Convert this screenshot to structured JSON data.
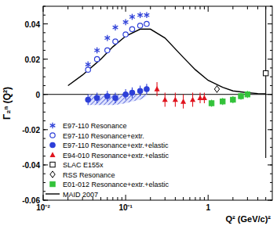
{
  "chart_data": {
    "type": "scatter",
    "x_label": "Q² (GeV/c)²",
    "y_label": "Γ₂ⁿ (Q²)",
    "log": "x",
    "legend": "lower left",
    "xlim": [
      0.01,
      6
    ],
    "ylim": [
      -0.06,
      0.05
    ],
    "xticks": [
      {
        "value": 0.01,
        "label": "10⁻²"
      },
      {
        "value": 0.1,
        "label": "10⁻¹"
      },
      1
    ],
    "yticks": [
      -0.06,
      -0.04,
      -0.02,
      0,
      0.02,
      0.04
    ],
    "series": [
      {
        "name": "E97-110 Resonance",
        "color": "#2d3fd8",
        "marker": "star",
        "x": [
          0.035,
          0.045,
          0.06,
          0.075,
          0.1,
          0.12,
          0.15,
          0.18
        ],
        "values": [
          0.017,
          0.025,
          0.032,
          0.038,
          0.041,
          0.044,
          0.045,
          0.045
        ]
      },
      {
        "name": "E97-110 Resonance+extr.",
        "color": "#2d3fd8",
        "marker": "circle-open",
        "x": [
          0.035,
          0.045,
          0.06,
          0.075,
          0.1,
          0.12,
          0.15,
          0.18
        ],
        "values": [
          0.014,
          0.02,
          0.025,
          0.03,
          0.034,
          0.037,
          0.039,
          0.04
        ]
      },
      {
        "name": "E97-110 Resonance+extr.+elastic",
        "color": "#2d3fd8",
        "marker": "circle",
        "x": [
          0.035,
          0.045,
          0.06,
          0.075,
          0.1,
          0.12,
          0.15,
          0.18
        ],
        "values": [
          -0.003,
          -0.002,
          -0.001,
          -0.002,
          0.0,
          0.001,
          0.002,
          0.003
        ],
        "errors": [
          0.003,
          0.003,
          0.003,
          0.003,
          0.003,
          0.003,
          0.003,
          0.003
        ],
        "systematic": [
          0.006,
          0.006,
          0.006,
          0.006,
          0.005,
          0.004,
          0.003,
          0.001
        ]
      },
      {
        "name": "E94-010 Resonance+extr.+elastic",
        "color": "#e0141e",
        "marker": "triangle",
        "x": [
          0.24,
          0.3,
          0.4,
          0.5,
          0.65,
          0.8,
          0.9
        ],
        "values": [
          0.003,
          -0.003,
          -0.003,
          -0.004,
          -0.003,
          -0.002,
          -0.002
        ],
        "errors": [
          0.004,
          0.004,
          0.004,
          0.004,
          0.004,
          0.003,
          0.003
        ]
      },
      {
        "name": "SLAC E155x",
        "color": "#000000",
        "marker": "square-open",
        "x": [
          5
        ],
        "values": [
          0.012
        ],
        "errors": [
          0.048
        ]
      },
      {
        "name": "RSS Resonance",
        "color": "#000000",
        "marker": "diamond-open",
        "x": [
          1.28
        ],
        "values": [
          0.003
        ],
        "errors": [
          0.002
        ]
      },
      {
        "name": "E01-012 Resonance+extr.+elastic",
        "color": "#33c23a",
        "marker": "square",
        "x": [
          1.1,
          1.5,
          2.0,
          2.5,
          3.0
        ],
        "values": [
          -0.005,
          -0.004,
          -0.003,
          -0.001,
          0.0
        ],
        "errors": [
          0.002,
          0.002,
          0.002,
          0.002,
          0.002
        ]
      },
      {
        "name": "MAID 2007",
        "color": "#000000",
        "type": "line",
        "line_style": "solid",
        "x": [
          0.02,
          0.03,
          0.05,
          0.07,
          0.1,
          0.15,
          0.2,
          0.3,
          0.5,
          0.7,
          1,
          1.5,
          2,
          3,
          4,
          5
        ],
        "values": [
          0.005,
          0.011,
          0.02,
          0.027,
          0.033,
          0.037,
          0.037,
          0.032,
          0.021,
          0.014,
          0.008,
          0.004,
          0.002,
          0.001,
          0.0005,
          0.0003
        ]
      }
    ]
  }
}
